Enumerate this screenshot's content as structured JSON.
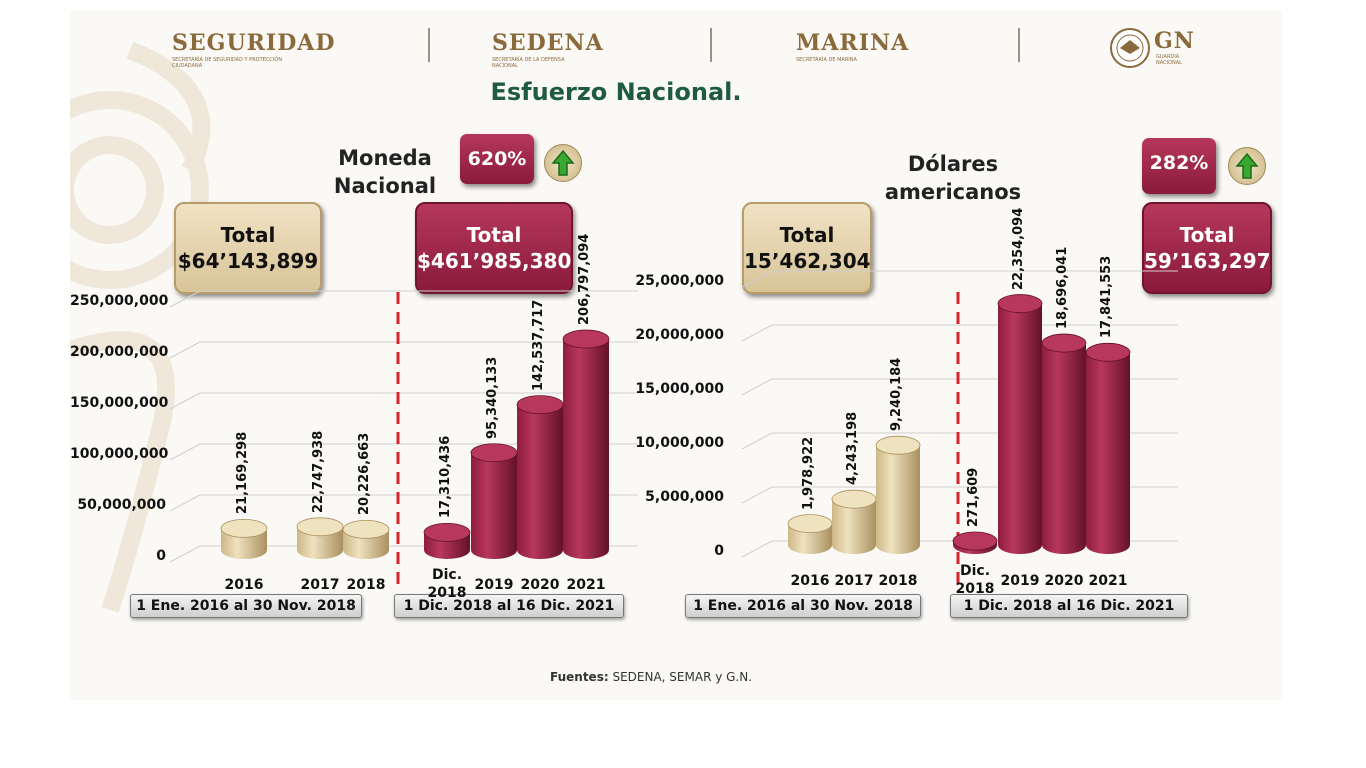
{
  "header": {
    "logos": [
      {
        "name": "SEGURIDAD",
        "sub": "SECRETARÍA DE SEGURIDAD Y PROTECCIÓN CIUDADANA"
      },
      {
        "name": "SEDENA",
        "sub": "SECRETARÍA DE LA DEFENSA NACIONAL"
      },
      {
        "name": "MARINA",
        "sub": "SECRETARÍA DE MARINA"
      },
      {
        "name": "GN",
        "sub": "GUARDIA NACIONAL"
      }
    ],
    "title": "Esfuerzo Nacional."
  },
  "left_panel": {
    "heading": "Moneda Nacional",
    "percent": "620%",
    "total_before_label": "Total",
    "total_before_value": "$64’143,899",
    "total_after_label": "Total",
    "total_after_value": "$461’985,380",
    "period_before": "1 Ene. 2016 al 30 Nov. 2018",
    "period_after": "1 Dic. 2018 al 16 Dic. 2021"
  },
  "right_panel": {
    "heading": "Dólares americanos",
    "percent": "282%",
    "total_before_label": "Total",
    "total_before_value": "15’462,304",
    "total_after_label": "Total",
    "total_after_value": "59’163,297",
    "period_before": "1 Ene. 2016 al 30 Nov. 2018",
    "period_after": "1 Dic. 2018 al 16 Dic. 2021"
  },
  "footer": {
    "label": "Fuentes:",
    "text": "SEDENA, SEMAR y G.N."
  },
  "colors": {
    "gold": "#d8c79a",
    "red": "#9b2246",
    "title_green": "#1e5b3f",
    "arrow_green": "#3aa830"
  },
  "chart_data": [
    {
      "type": "bar",
      "categories": [
        "2016",
        "2017",
        "2018",
        "Dic. 2018",
        "2019",
        "2020",
        "2021"
      ],
      "values": [
        21169298,
        22747938,
        20226663,
        17310436,
        95340133,
        142537717,
        206797094
      ],
      "value_labels": [
        "21,169,298",
        "22,747,938",
        "20,226,663",
        "17,310,436",
        "95,340,133",
        "142,537,717",
        "206,797,094"
      ],
      "bar_colors": [
        "gold",
        "gold",
        "gold",
        "red",
        "red",
        "red",
        "red"
      ],
      "yticks": [
        "250,000,000",
        "200,000,000",
        "150,000,000",
        "100,000,000",
        "50,000,000",
        "0"
      ],
      "ylim": [
        0,
        250000000
      ]
    },
    {
      "type": "bar",
      "categories": [
        "2016",
        "2017",
        "2018",
        "Dic. 2018",
        "2019",
        "2020",
        "2021"
      ],
      "values": [
        1978922,
        4243198,
        9240184,
        271609,
        22354094,
        18696041,
        17841553
      ],
      "value_labels": [
        "1,978,922",
        "4,243,198",
        "9,240,184",
        "271,609",
        "22,354,094",
        "18,696,041",
        "17,841,553"
      ],
      "bar_colors": [
        "gold",
        "gold",
        "gold",
        "red",
        "red",
        "red",
        "red"
      ],
      "yticks": [
        "25,000,000",
        "20,000,000",
        "15,000,000",
        "10,000,000",
        "5,000,000",
        "0"
      ],
      "ylim": [
        0,
        25000000
      ]
    }
  ]
}
